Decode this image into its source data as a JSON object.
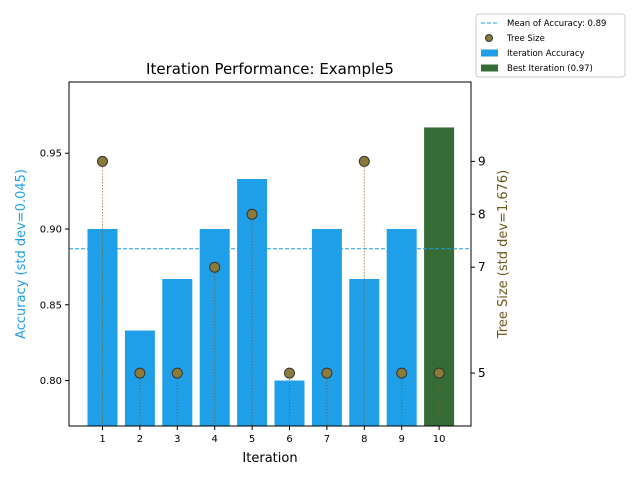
{
  "chart_data": {
    "type": "bar",
    "title": "Iteration Performance: Example5",
    "xlabel": "Iteration",
    "ylabel_left": "Accuracy (std dev=0.045)",
    "ylabel_right": "Tree Size (std dev=1.676)",
    "categories": [
      "1",
      "2",
      "3",
      "4",
      "5",
      "6",
      "7",
      "8",
      "9",
      "10"
    ],
    "series": [
      {
        "name": "Iteration Accuracy",
        "axis": "left",
        "kind": "bar",
        "color": "#1f9fe8",
        "values": [
          0.9,
          0.833,
          0.867,
          0.9,
          0.933,
          0.8,
          0.9,
          0.867,
          0.9,
          0.967
        ]
      },
      {
        "name": "Tree Size",
        "axis": "right",
        "kind": "stem",
        "color": "#8b7b3a",
        "values": [
          9,
          5,
          5,
          7,
          8,
          5,
          5,
          9,
          5,
          5
        ]
      }
    ],
    "best": {
      "index": 9,
      "label": "Best Iteration (0.97)",
      "color": "#356b35"
    },
    "mean_line": {
      "label": "Mean of Accuracy: 0.89",
      "value": 0.887,
      "color": "#1f9fe8"
    },
    "ylim_left": [
      0.77,
      0.997
    ],
    "ylim_right": [
      4.0,
      10.5
    ],
    "yticks_left": [
      "0.80",
      "0.85",
      "0.90",
      "0.95"
    ],
    "yticks_right": [
      "5",
      "7",
      "8",
      "9"
    ],
    "left_axis_color": "#1f9fe8",
    "right_axis_color": "#6b5a1e",
    "legend": [
      {
        "label": "Mean of Accuracy: 0.89",
        "kind": "dashed-line",
        "color": "#1f9fe8"
      },
      {
        "label": "Tree Size",
        "kind": "marker",
        "color": "#8b7b3a"
      },
      {
        "label": "Iteration Accuracy",
        "kind": "patch",
        "color": "#1f9fe8"
      },
      {
        "label": "Best Iteration (0.97)",
        "kind": "patch",
        "color": "#356b35"
      }
    ],
    "legend_position": "outside top-right",
    "grid": false
  }
}
